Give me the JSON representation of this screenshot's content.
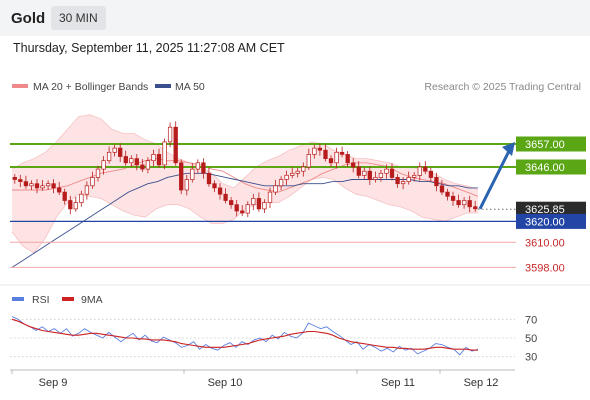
{
  "header": {
    "symbol": "Gold",
    "timeframe": "30 MIN"
  },
  "datetime": "Thursday, September 11, 2025 11:27:08 AM CET",
  "legend": {
    "ma20_label": "MA 20 + Bollinger Bands",
    "ma50_label": "MA 50",
    "source": "Research © 2025 Trading Central",
    "rsi_label": "RSI",
    "ma9_label": "9MA"
  },
  "colors": {
    "bollinger_fill": "#fde3e4",
    "ma20": "#f08a8a",
    "ma50": "#3b4f8c",
    "resistance": "#5aa614",
    "support_blue": "#2346a6",
    "support_red": "#f3a7a7",
    "candle": "#b71c1c",
    "rsi": "#5b7fe0",
    "rsi_ma": "#cc2222",
    "arrow": "#2a63b0"
  },
  "chart_data": [
    {
      "type": "candlestick",
      "title": "Gold 30 MIN",
      "x_ticks": [
        "Sep 9",
        "Sep 10",
        "Sep 11",
        "Sep 12"
      ],
      "ylim": [
        3592,
        3678
      ],
      "levels": [
        {
          "label": "3657.00",
          "value": 3657.0,
          "kind": "resistance"
        },
        {
          "label": "3646.00",
          "value": 3646.0,
          "kind": "resistance"
        },
        {
          "label": "3625.85",
          "value": 3625.85,
          "kind": "last"
        },
        {
          "label": "3620.00",
          "value": 3620.0,
          "kind": "support"
        },
        {
          "label": "3610.00",
          "value": 3610.0,
          "kind": "support_minor"
        },
        {
          "label": "3598.00",
          "value": 3598.0,
          "kind": "support_minor"
        }
      ],
      "close": [
        3640,
        3639,
        3637,
        3638,
        3636,
        3637,
        3638,
        3636,
        3634,
        3630,
        3626,
        3629,
        3633,
        3637,
        3641,
        3645,
        3649,
        3653,
        3655,
        3651,
        3648,
        3650,
        3647,
        3645,
        3649,
        3652,
        3647,
        3658,
        3665,
        3648,
        3635,
        3640,
        3645,
        3648,
        3643,
        3638,
        3636,
        3633,
        3630,
        3628,
        3625,
        3624,
        3628,
        3631,
        3626,
        3629,
        3634,
        3637,
        3640,
        3642,
        3643,
        3644,
        3646,
        3652,
        3655,
        3654,
        3650,
        3648,
        3653,
        3652,
        3648,
        3646,
        3642,
        3644,
        3640,
        3641,
        3643,
        3645,
        3641,
        3638,
        3639,
        3641,
        3642,
        3646,
        3644,
        3641,
        3637,
        3634,
        3632,
        3630,
        3628,
        3630,
        3627,
        3626
      ],
      "ma20": [
        3635,
        3635,
        3635,
        3635,
        3636,
        3637,
        3639,
        3641,
        3643,
        3644,
        3645,
        3647,
        3649,
        3650,
        3649,
        3649,
        3648,
        3647,
        3645,
        3644,
        3641,
        3638,
        3636,
        3635,
        3634,
        3636,
        3638,
        3640,
        3643,
        3645,
        3647,
        3648,
        3648,
        3647,
        3646,
        3643,
        3641,
        3640,
        3639,
        3638,
        3636,
        3634,
        3632
      ],
      "bb_upper": [
        3645,
        3648,
        3650,
        3653,
        3658,
        3664,
        3670,
        3671,
        3669,
        3664,
        3662,
        3662,
        3659,
        3657,
        3653,
        3650,
        3648,
        3646,
        3643,
        3638,
        3636,
        3641,
        3646,
        3649,
        3651,
        3654,
        3656,
        3658,
        3657,
        3654,
        3652,
        3650,
        3650,
        3649,
        3648,
        3646,
        3646,
        3645,
        3643,
        3640,
        3638,
        3637,
        3635
      ],
      "bb_lower": [
        3615,
        3608,
        3605,
        3612,
        3622,
        3629,
        3633,
        3632,
        3631,
        3628,
        3625,
        3623,
        3622,
        3626,
        3628,
        3628,
        3626,
        3622,
        3619,
        3619,
        3621,
        3626,
        3628,
        3629,
        3629,
        3632,
        3636,
        3640,
        3641,
        3640,
        3636,
        3633,
        3632,
        3630,
        3628,
        3627,
        3625,
        3622,
        3621,
        3620,
        3622,
        3624,
        3624
      ],
      "ma50": [
        3598,
        3601,
        3604,
        3607,
        3610,
        3613,
        3616,
        3619,
        3622,
        3625,
        3628,
        3631,
        3634,
        3636,
        3638,
        3639,
        3641,
        3642,
        3643,
        3643,
        3643,
        3642,
        3641,
        3640,
        3639,
        3638,
        3637,
        3637,
        3637,
        3637,
        3638,
        3638,
        3638,
        3639,
        3639,
        3640,
        3640,
        3640,
        3640,
        3640,
        3640,
        3640,
        3639,
        3639,
        3638,
        3637,
        3637,
        3636,
        3636
      ]
    },
    {
      "type": "line",
      "title": "RSI",
      "y_ticks": [
        70,
        50,
        30
      ],
      "ylim": [
        20,
        80
      ],
      "series": [
        {
          "name": "RSI",
          "values": [
            73,
            70,
            65,
            62,
            58,
            62,
            57,
            60,
            55,
            60,
            52,
            55,
            60,
            56,
            53,
            50,
            56,
            51,
            46,
            51,
            55,
            48,
            53,
            47,
            45,
            51,
            48,
            45,
            40,
            42,
            46,
            38,
            43,
            39,
            37,
            42,
            45,
            40,
            46,
            43,
            48,
            50,
            46,
            53,
            49,
            56,
            52,
            50,
            55,
            66,
            63,
            60,
            62,
            57,
            53,
            48,
            43,
            46,
            38,
            43,
            40,
            36,
            39,
            35,
            41,
            37,
            39,
            33,
            36,
            39,
            44,
            43,
            40,
            38,
            32,
            40,
            36,
            38
          ]
        },
        {
          "name": "9MA",
          "values": [
            70,
            68,
            65,
            62,
            60,
            58,
            57,
            56,
            55,
            54,
            53,
            53,
            54,
            55,
            55,
            54,
            53,
            52,
            51,
            50,
            50,
            49,
            49,
            48,
            48,
            48,
            47,
            46,
            44,
            43,
            42,
            41,
            40,
            40,
            40,
            40,
            41,
            42,
            43,
            44,
            46,
            48,
            49,
            50,
            51,
            52,
            54,
            55,
            56,
            57,
            57,
            56,
            55,
            53,
            50,
            48,
            46,
            45,
            44,
            43,
            42,
            41,
            40,
            40,
            39,
            39,
            38,
            38,
            38,
            39,
            40,
            40,
            39,
            38,
            38,
            38,
            37,
            37
          ]
        }
      ]
    }
  ]
}
